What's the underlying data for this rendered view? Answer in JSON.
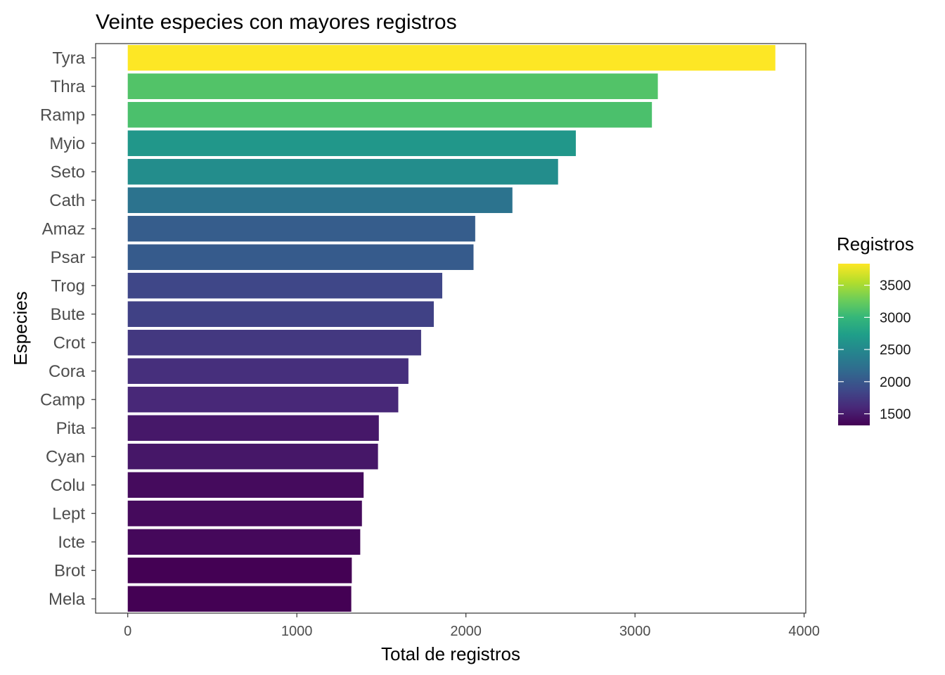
{
  "chart_data": {
    "type": "bar",
    "orientation": "horizontal",
    "title": "Veinte especies con mayores registros",
    "xlabel": "Total de registros",
    "ylabel": "Especies",
    "xlim": [
      -190,
      4010
    ],
    "xticks": [
      0,
      1000,
      2000,
      3000,
      4000
    ],
    "grid": false,
    "legend_title": "Registros",
    "legend_position": "right",
    "legend_ticks": [
      1500,
      2000,
      2500,
      3000,
      3500
    ],
    "color_range": [
      1322,
      3830
    ],
    "categories": [
      "Tyra",
      "Thra",
      "Ramp",
      "Myio",
      "Seto",
      "Cath",
      "Amaz",
      "Psar",
      "Trog",
      "Bute",
      "Crot",
      "Cora",
      "Camp",
      "Pita",
      "Cyan",
      "Colu",
      "Lept",
      "Icte",
      "Brot",
      "Mela"
    ],
    "values": [
      3830,
      3135,
      3100,
      2650,
      2545,
      2275,
      2055,
      2045,
      1860,
      1810,
      1735,
      1660,
      1600,
      1485,
      1480,
      1395,
      1385,
      1375,
      1325,
      1322
    ]
  },
  "colors": {
    "viridis": [
      "#440154",
      "#482878",
      "#3e4989",
      "#31688e",
      "#26828e",
      "#1f9e89",
      "#35b779",
      "#6ece58",
      "#b5de2b",
      "#fde725"
    ],
    "panel_border": "#333333",
    "tick_text": "#4d4d4d"
  }
}
